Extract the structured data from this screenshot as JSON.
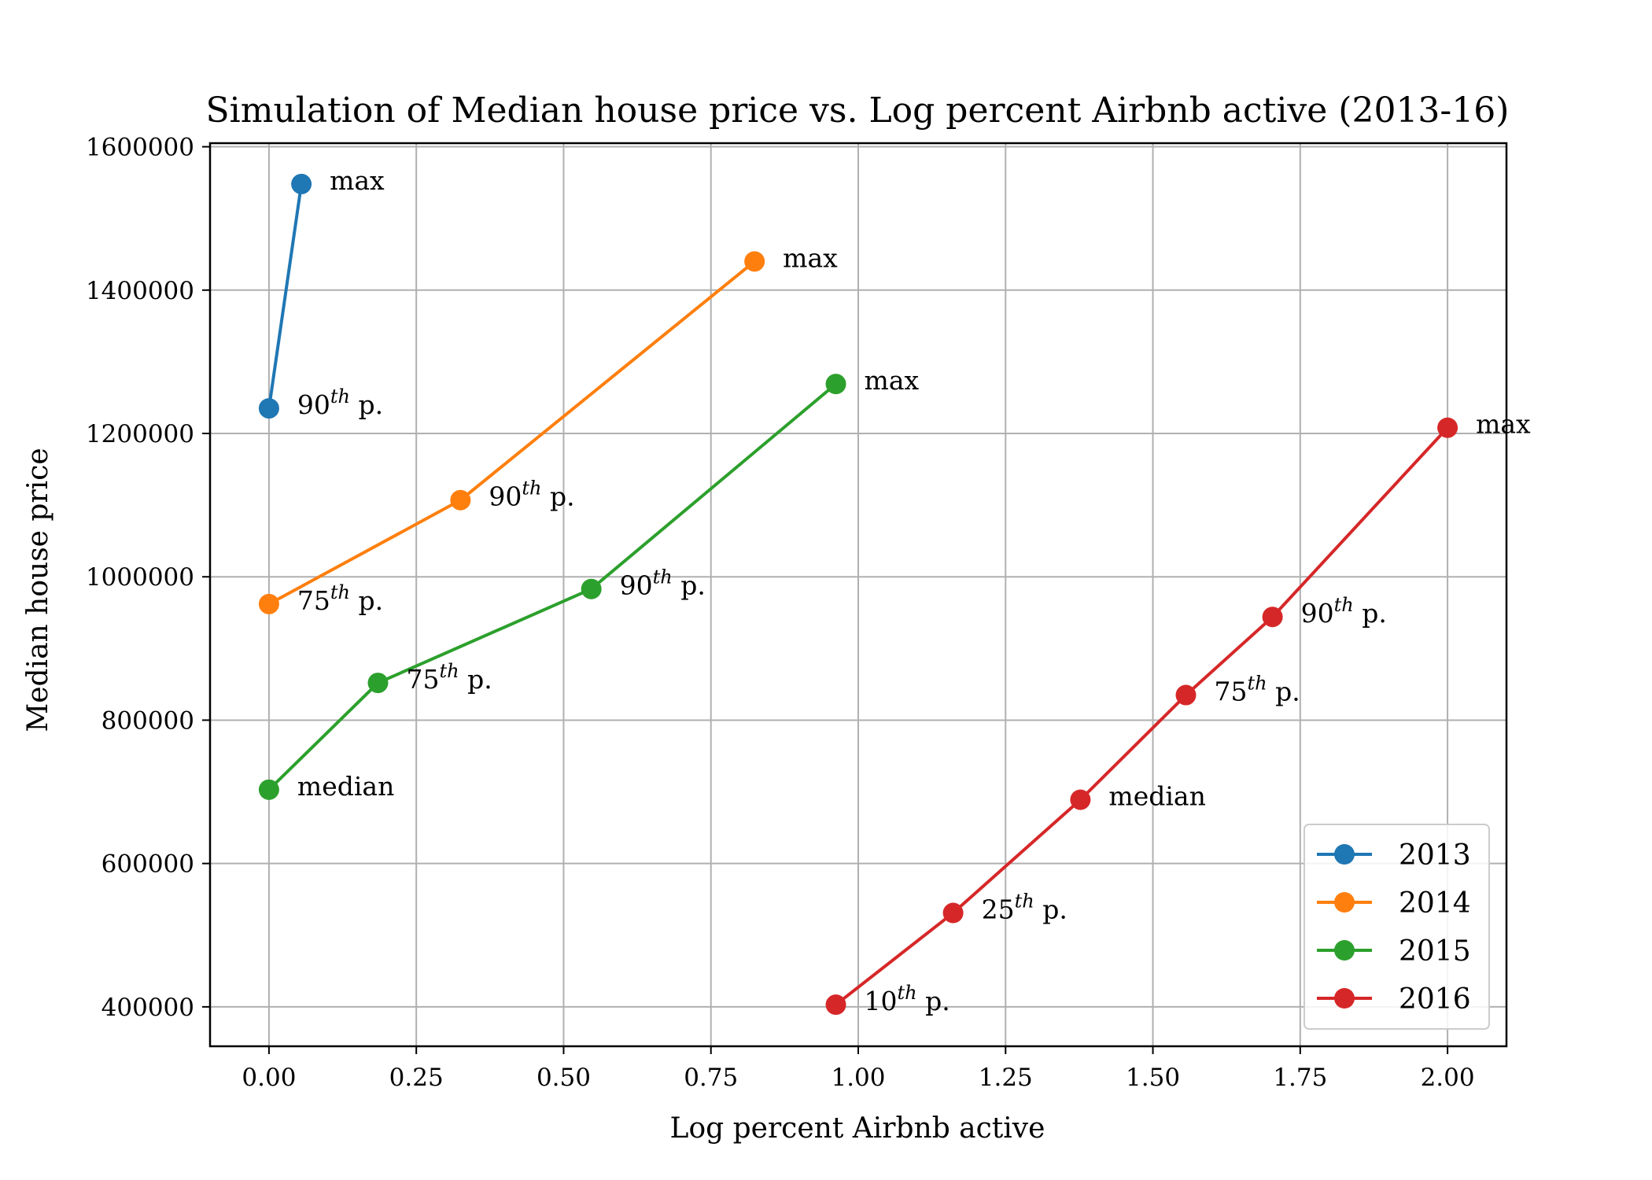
{
  "chart_data": {
    "type": "line",
    "title": "Simulation of Median house price vs. Log percent Airbnb active (2013-16)",
    "xlabel": "Log percent Airbnb active",
    "ylabel": "Median house price",
    "xlim": [
      -0.1,
      2.1
    ],
    "ylim": [
      345000,
      1605000
    ],
    "xticks": [
      0.0,
      0.25,
      0.5,
      0.75,
      1.0,
      1.25,
      1.5,
      1.75,
      2.0
    ],
    "xtick_labels": [
      "0.00",
      "0.25",
      "0.50",
      "0.75",
      "1.00",
      "1.25",
      "1.50",
      "1.75",
      "2.00"
    ],
    "yticks": [
      400000,
      600000,
      800000,
      1000000,
      1200000,
      1400000,
      1600000
    ],
    "ytick_labels": [
      "400000",
      "600000",
      "800000",
      "1000000",
      "1200000",
      "1400000",
      "1600000"
    ],
    "grid": true,
    "legend_position": "lower-right",
    "series": [
      {
        "name": "2013",
        "color": "#1f77b4",
        "points": [
          {
            "x": 0.0,
            "y": 1235000,
            "label": "90",
            "sup": "th",
            "suffix": " p."
          },
          {
            "x": 0.055,
            "y": 1548000,
            "label": "max",
            "sup": "",
            "suffix": ""
          }
        ]
      },
      {
        "name": "2014",
        "color": "#ff7f0e",
        "points": [
          {
            "x": 0.0,
            "y": 962000,
            "label": "75",
            "sup": "th",
            "suffix": " p."
          },
          {
            "x": 0.325,
            "y": 1107000,
            "label": "90",
            "sup": "th",
            "suffix": " p."
          },
          {
            "x": 0.824,
            "y": 1440000,
            "label": "max",
            "sup": "",
            "suffix": ""
          }
        ]
      },
      {
        "name": "2015",
        "color": "#2ca02c",
        "points": [
          {
            "x": 0.0,
            "y": 703000,
            "label": "median",
            "sup": "",
            "suffix": ""
          },
          {
            "x": 0.185,
            "y": 852000,
            "label": "75",
            "sup": "th",
            "suffix": " p."
          },
          {
            "x": 0.547,
            "y": 983000,
            "label": "90",
            "sup": "th",
            "suffix": " p."
          },
          {
            "x": 0.962,
            "y": 1269000,
            "label": "max",
            "sup": "",
            "suffix": ""
          }
        ]
      },
      {
        "name": "2016",
        "color": "#d62728",
        "points": [
          {
            "x": 0.962,
            "y": 403000,
            "label": "10",
            "sup": "th",
            "suffix": " p."
          },
          {
            "x": 1.161,
            "y": 531000,
            "label": "25",
            "sup": "th",
            "suffix": " p."
          },
          {
            "x": 1.377,
            "y": 689000,
            "label": "median",
            "sup": "",
            "suffix": ""
          },
          {
            "x": 1.556,
            "y": 835000,
            "label": "75",
            "sup": "th",
            "suffix": " p."
          },
          {
            "x": 1.703,
            "y": 944000,
            "label": "90",
            "sup": "th",
            "suffix": " p."
          },
          {
            "x": 2.0,
            "y": 1208000,
            "label": "max",
            "sup": "",
            "suffix": ""
          }
        ]
      }
    ]
  }
}
